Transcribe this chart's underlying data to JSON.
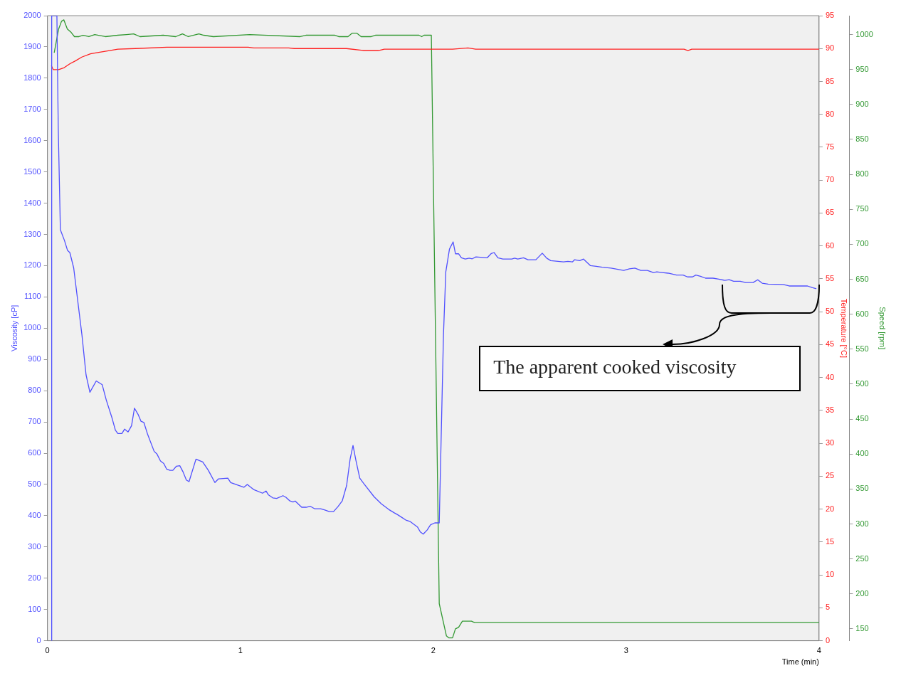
{
  "chart_data": {
    "type": "line",
    "xlabel": "Time (min)",
    "ylabel": "Viscosity [cP]",
    "y2label": "Temperature [°C]",
    "y3label": "Speed [rpm]",
    "xlim": [
      0,
      4
    ],
    "xticks": [
      0,
      1,
      2,
      3,
      4
    ],
    "ylim": [
      0,
      2000
    ],
    "yticks": [
      0,
      100,
      200,
      300,
      400,
      500,
      600,
      700,
      800,
      900,
      1000,
      1100,
      1200,
      1300,
      1400,
      1500,
      1600,
      1700,
      1800,
      1900,
      2000
    ],
    "y2lim": [
      0,
      95
    ],
    "y2ticks": [
      0,
      5,
      10,
      15,
      20,
      25,
      30,
      35,
      40,
      45,
      50,
      55,
      60,
      65,
      70,
      75,
      80,
      85,
      90,
      95
    ],
    "y3lim": [
      133,
      1027
    ],
    "y3ticks": [
      150,
      200,
      250,
      300,
      350,
      400,
      450,
      500,
      550,
      600,
      650,
      700,
      750,
      800,
      850,
      900,
      950,
      1000
    ],
    "grid": false,
    "legend": false,
    "marker": "none",
    "line_style": "solid",
    "annotations": [
      "The apparent cooked viscosity"
    ],
    "series": [
      {
        "color": "#5050ff",
        "x": [
          0.02,
          0.022,
          0.049,
          0.056,
          0.067,
          0.088,
          0.104,
          0.116,
          0.136,
          0.179,
          0.2,
          0.22,
          0.253,
          0.284,
          0.305,
          0.335,
          0.352,
          0.365,
          0.386,
          0.4,
          0.418,
          0.436,
          0.451,
          0.47,
          0.485,
          0.5,
          0.52,
          0.553,
          0.568,
          0.586,
          0.603,
          0.618,
          0.635,
          0.65,
          0.668,
          0.686,
          0.703,
          0.72,
          0.734,
          0.77,
          0.805,
          0.834,
          0.868,
          0.887,
          0.935,
          0.95,
          1.018,
          1.036,
          1.052,
          1.071,
          1.115,
          1.133,
          1.145,
          1.168,
          1.188,
          1.221,
          1.236,
          1.255,
          1.273,
          1.284,
          1.318,
          1.341,
          1.363,
          1.386,
          1.416,
          1.438,
          1.461,
          1.483,
          1.506,
          1.528,
          1.551,
          1.569,
          1.584,
          1.599,
          1.619,
          1.641,
          1.694,
          1.731,
          1.769,
          1.798,
          1.813,
          1.836,
          1.858,
          1.881,
          1.918,
          1.933,
          1.948,
          1.968,
          1.986,
          2.008,
          2.031,
          2.053,
          2.065,
          2.084,
          2.103,
          2.115,
          2.131,
          2.146,
          2.166,
          2.186,
          2.202,
          2.221,
          2.279,
          2.301,
          2.315,
          2.335,
          2.361,
          2.407,
          2.422,
          2.438,
          2.468,
          2.491,
          2.532,
          2.565,
          2.588,
          2.609,
          2.675,
          2.698,
          2.721,
          2.733,
          2.759,
          2.779,
          2.815,
          2.845,
          2.876,
          2.922,
          2.987,
          3.017,
          3.045,
          3.076,
          3.11,
          3.141,
          3.159,
          3.187,
          3.218,
          3.261,
          3.295,
          3.318,
          3.344,
          3.361,
          3.385,
          3.411,
          3.45,
          3.48,
          3.511,
          3.534,
          3.557,
          3.591,
          3.619,
          3.658,
          3.682,
          3.705,
          3.736,
          3.814,
          3.845,
          3.94,
          3.963,
          3.986
        ],
        "values": [
          0,
          2000,
          2000,
          1640,
          1315,
          1281,
          1249,
          1242,
          1193,
          977,
          851,
          795,
          831,
          819,
          770,
          712,
          674,
          663,
          663,
          677,
          668,
          688,
          744,
          724,
          702,
          698,
          659,
          606,
          597,
          575,
          567,
          549,
          545,
          545,
          558,
          560,
          540,
          514,
          509,
          581,
          572,
          545,
          506,
          518,
          520,
          506,
          491,
          500,
          492,
          483,
          472,
          479,
          467,
          457,
          455,
          464,
          459,
          448,
          444,
          447,
          427,
          427,
          430,
          422,
          422,
          418,
          413,
          413,
          429,
          447,
          497,
          581,
          625,
          577,
          520,
          502,
          460,
          438,
          420,
          409,
          404,
          395,
          386,
          381,
          364,
          348,
          341,
          354,
          371,
          377,
          377,
          980,
          1180,
          1253,
          1276,
          1238,
          1238,
          1225,
          1221,
          1224,
          1222,
          1228,
          1225,
          1239,
          1242,
          1225,
          1221,
          1221,
          1224,
          1221,
          1225,
          1219,
          1219,
          1240,
          1224,
          1216,
          1212,
          1214,
          1212,
          1219,
          1216,
          1221,
          1200,
          1198,
          1195,
          1192,
          1185,
          1190,
          1192,
          1185,
          1185,
          1178,
          1180,
          1178,
          1176,
          1170,
          1170,
          1164,
          1164,
          1170,
          1166,
          1160,
          1160,
          1157,
          1153,
          1155,
          1150,
          1150,
          1146,
          1146,
          1155,
          1144,
          1141,
          1140,
          1135,
          1135,
          1130,
          1126
        ]
      },
      {
        "color": "#ff2020",
        "axis": "y2",
        "x": [
          0.02,
          0.03,
          0.058,
          0.087,
          0.117,
          0.143,
          0.178,
          0.223,
          0.26,
          0.305,
          0.365,
          0.455,
          0.62,
          1.04,
          1.07,
          1.25,
          1.28,
          1.55,
          1.64,
          1.716,
          1.746,
          2.1,
          2.18,
          2.22,
          3.3,
          3.32,
          3.34,
          4
        ],
        "values": [
          87.4,
          86.8,
          86.8,
          87.1,
          87.7,
          88.1,
          88.7,
          89.2,
          89.4,
          89.6,
          89.9,
          90,
          90.2,
          90.2,
          90.1,
          90.1,
          90,
          90,
          89.7,
          89.7,
          89.9,
          89.9,
          90.1,
          89.9,
          89.9,
          89.7,
          89.9,
          89.9
        ]
      },
      {
        "color": "#339933",
        "axis": "y3",
        "x": [
          0.035,
          0.058,
          0.073,
          0.085,
          0.103,
          0.123,
          0.14,
          0.163,
          0.185,
          0.215,
          0.245,
          0.3,
          0.365,
          0.41,
          0.447,
          0.48,
          0.6,
          0.665,
          0.7,
          0.73,
          0.785,
          0.81,
          0.86,
          1.048,
          1.31,
          1.34,
          1.49,
          1.51,
          1.558,
          1.58,
          1.603,
          1.626,
          1.678,
          1.7,
          1.926,
          1.94,
          1.952,
          1.99,
          2.031,
          2.068,
          2.081,
          2.1,
          2.115,
          2.131,
          2.151,
          2.175,
          2.198,
          2.214,
          4
        ],
        "values": [
          974,
          1008,
          1019,
          1021,
          1008,
          1003,
          997,
          997,
          999,
          997,
          1000,
          997,
          999,
          1000,
          1001,
          997,
          999,
          997,
          1001,
          997,
          1001,
          999,
          997,
          1000,
          997,
          999,
          999,
          997,
          997,
          1002,
          1002,
          997,
          997,
          999,
          999,
          997,
          999,
          999,
          186,
          140,
          137,
          137,
          150,
          152,
          161,
          161,
          161,
          159,
          159
        ]
      }
    ]
  }
}
